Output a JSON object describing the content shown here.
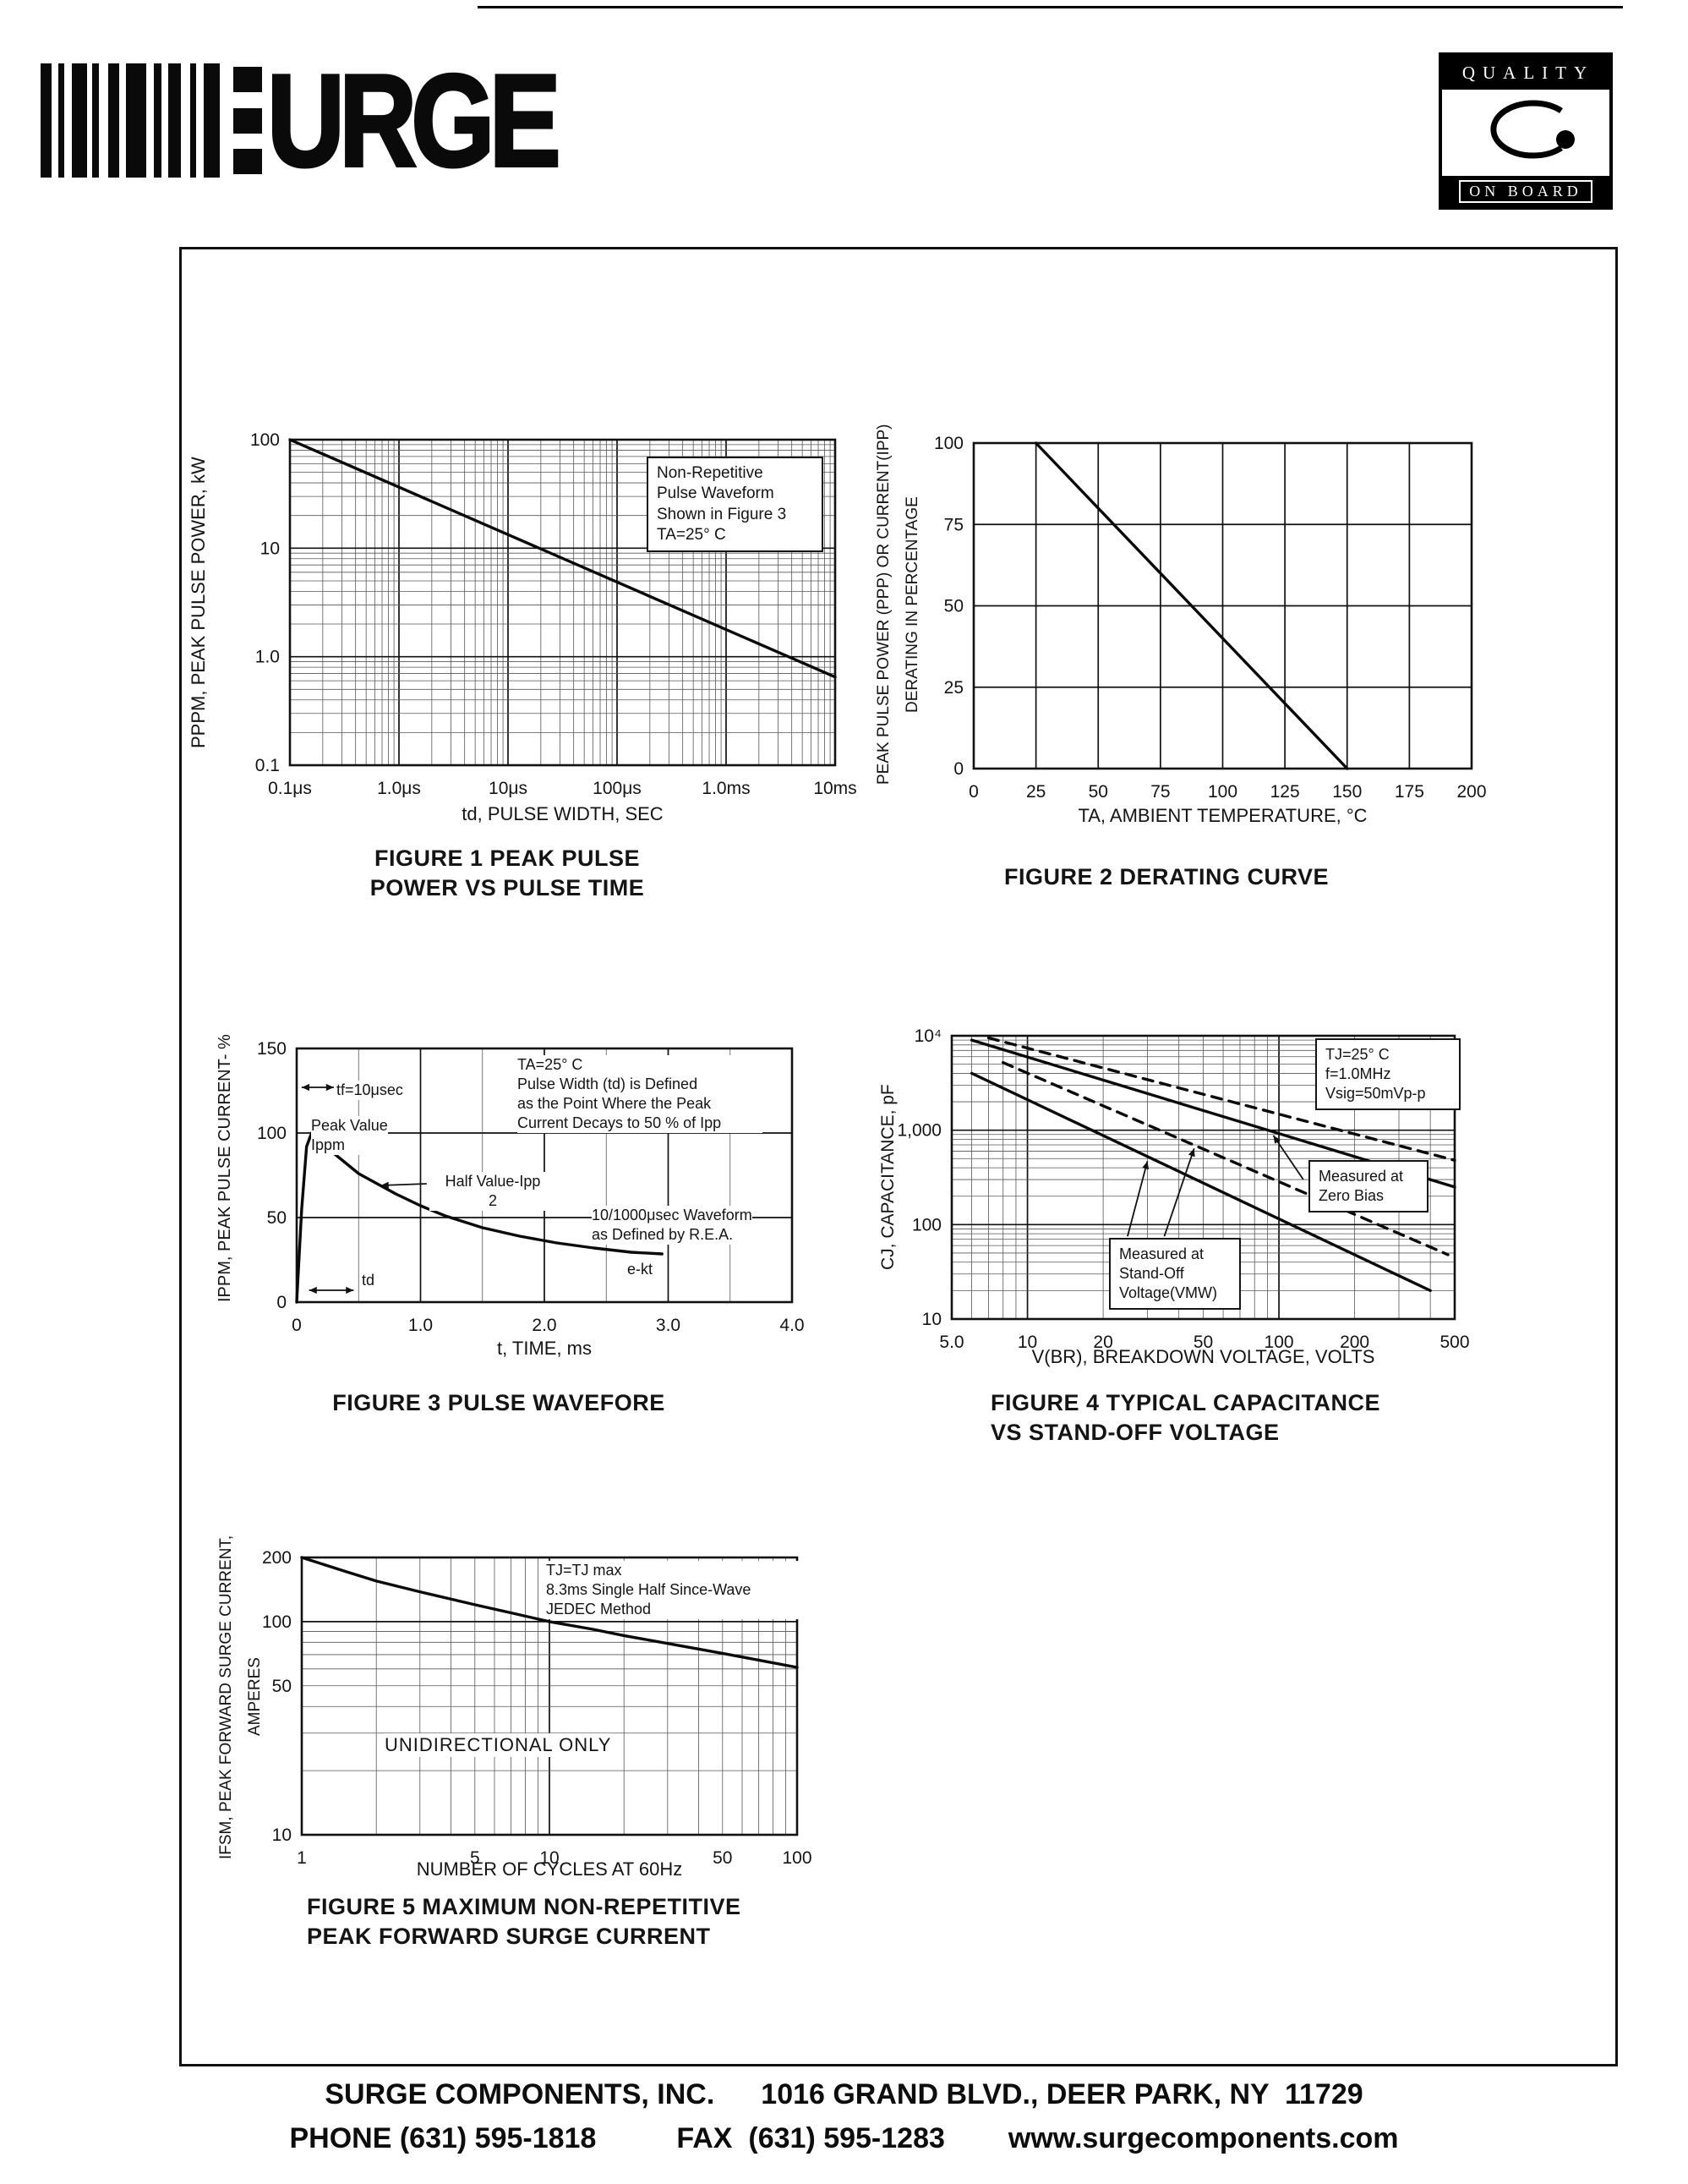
{
  "page": {
    "header": {
      "brand": "URGE",
      "quality_top": "QUALITY",
      "quality_bottom": "ON BOARD"
    },
    "footer": {
      "company": "SURGE COMPONENTS, INC.",
      "address": "1016 GRAND BLVD., DEER PARK, NY  11729",
      "phone_label": "PHONE ",
      "phone": "(631) 595-1818",
      "fax_label": "FAX  ",
      "fax": "(631) 595-1283",
      "website": "www.surgecomponents.com"
    }
  },
  "chart_data": [
    {
      "id": "figure1",
      "type": "line",
      "caption": "FIGURE 1 PEAK PULSE\nPOWER VS PULSE TIME",
      "xlabel": "td, PULSE WIDTH, SEC",
      "ylabel": "PPPM, PEAK PULSE POWER, kW",
      "x": {
        "scale": "log",
        "min": 1e-07,
        "max": 0.01,
        "ticks": [
          {
            "v": 1e-07,
            "label": "0.1μs"
          },
          {
            "v": 1e-06,
            "label": "1.0μs"
          },
          {
            "v": 1e-05,
            "label": "10μs"
          },
          {
            "v": 0.0001,
            "label": "100μs"
          },
          {
            "v": 0.001,
            "label": "1.0ms"
          },
          {
            "v": 0.01,
            "label": "10ms"
          }
        ]
      },
      "y": {
        "scale": "log",
        "min": 0.1,
        "max": 100,
        "ticks": [
          {
            "v": 100,
            "label": "100"
          },
          {
            "v": 10,
            "label": "10"
          },
          {
            "v": 1,
            "label": "1.0"
          },
          {
            "v": 0.1,
            "label": "0.1"
          }
        ]
      },
      "series": [
        {
          "name": "non-repetitive peak pulse power",
          "dash": false,
          "points": [
            [
              1e-07,
              100
            ],
            [
              0.01,
              0.65
            ]
          ]
        }
      ],
      "annotations": {
        "cond": "Non-Repetitive\nPulse Waveform\nShown in Figure 3\nTA=25° C"
      }
    },
    {
      "id": "figure2",
      "type": "line",
      "caption": "FIGURE 2 DERATING CURVE",
      "xlabel": "TA, AMBIENT  TEMPERATURE, °C",
      "ylabel": "PEAK PULSE POWER (PPP) OR CURRENT(IPP)",
      "ylabel2": "DERATING IN PERCENTAGE",
      "x": {
        "scale": "linear",
        "min": 0,
        "max": 200,
        "grid_step": 25,
        "major_step": 25,
        "ticks": [
          {
            "v": 0,
            "label": "0"
          },
          {
            "v": 25,
            "label": "25"
          },
          {
            "v": 50,
            "label": "50"
          },
          {
            "v": 75,
            "label": "75"
          },
          {
            "v": 100,
            "label": "100"
          },
          {
            "v": 125,
            "label": "125"
          },
          {
            "v": 150,
            "label": "150"
          },
          {
            "v": 175,
            "label": "175"
          },
          {
            "v": 200,
            "label": "200"
          }
        ]
      },
      "y": {
        "scale": "linear",
        "min": 0,
        "max": 100,
        "grid_step": 25,
        "major_step": 25,
        "ticks": [
          {
            "v": 100,
            "label": "100"
          },
          {
            "v": 75,
            "label": "75"
          },
          {
            "v": 50,
            "label": "50"
          },
          {
            "v": 25,
            "label": "25"
          },
          {
            "v": 0,
            "label": "0"
          }
        ]
      },
      "series": [
        {
          "name": "derating",
          "dash": false,
          "points": [
            [
              25,
              100
            ],
            [
              150,
              0
            ]
          ]
        }
      ],
      "annotations": {}
    },
    {
      "id": "figure3",
      "type": "line",
      "caption": "FIGURE 3 PULSE WAVEFORE",
      "xlabel": "t, TIME, ms",
      "ylabel": "IPPM, PEAK PULSE CURRENT- %",
      "x": {
        "scale": "linear",
        "min": 0,
        "max": 4,
        "grid_step": 0.5,
        "major_step": 1,
        "ticks": [
          {
            "v": 0,
            "label": "0"
          },
          {
            "v": 1,
            "label": "1.0"
          },
          {
            "v": 2,
            "label": "2.0"
          },
          {
            "v": 3,
            "label": "3.0"
          },
          {
            "v": 4,
            "label": "4.0"
          }
        ]
      },
      "y": {
        "scale": "linear",
        "min": 0,
        "max": 150,
        "grid_step": 50,
        "major_step": 50,
        "ticks": [
          {
            "v": 150,
            "label": "150"
          },
          {
            "v": 100,
            "label": "100"
          },
          {
            "v": 50,
            "label": "50"
          },
          {
            "v": 0,
            "label": "0"
          }
        ]
      },
      "series": [
        {
          "name": "10/1000μsec pulse waveform",
          "dash": false,
          "points": [
            [
              0,
              0
            ],
            [
              0.04,
              55
            ],
            [
              0.08,
              92
            ],
            [
              0.12,
              100
            ],
            [
              0.2,
              95
            ],
            [
              0.3,
              88
            ],
            [
              0.4,
              82
            ],
            [
              0.5,
              76
            ],
            [
              0.65,
              70
            ],
            [
              0.8,
              64
            ],
            [
              1.0,
              57
            ],
            [
              1.2,
              51
            ],
            [
              1.5,
              44
            ],
            [
              1.8,
              39
            ],
            [
              2.1,
              35
            ],
            [
              2.4,
              32
            ],
            [
              2.7,
              29.5
            ],
            [
              2.95,
              28.5
            ]
          ]
        }
      ],
      "leaders": [
        {
          "from": [
            0.04,
            127
          ],
          "to": [
            0.3,
            127
          ],
          "both": true
        },
        {
          "from": [
            0.45,
            95
          ],
          "to": [
            0.17,
            99
          ],
          "both": false
        },
        {
          "from": [
            1.05,
            70
          ],
          "to": [
            0.68,
            69
          ],
          "both": false
        },
        {
          "from": [
            0.1,
            7
          ],
          "to": [
            0.46,
            7
          ],
          "both": true
        }
      ],
      "annotations": {
        "cond": "TA=25° C\nPulse Width (td) is Defined\nas the Point Where the Peak\nCurrent Decays to 50 % of Ipp",
        "tf": "tf=10μsec",
        "peak": "Peak Value\nIppm",
        "half": "Half Value-Ipp\n2",
        "rea": "10/1000μsec Waveform\nas Defined by R.E.A.",
        "ekt": "e-kt",
        "td": "td"
      }
    },
    {
      "id": "figure4",
      "type": "line",
      "caption": "FIGURE 4 TYPICAL CAPACITANCE\nVS STAND-OFF VOLTAGE",
      "xlabel": "V(BR), BREAKDOWN  VOLTAGE, VOLTS",
      "ylabel": "CJ, CAPACITANCE, pF",
      "x": {
        "scale": "log",
        "min": 5,
        "max": 500,
        "ticks": [
          {
            "v": 5,
            "label": "5.0"
          },
          {
            "v": 10,
            "label": "10"
          },
          {
            "v": 20,
            "label": "20"
          },
          {
            "v": 50,
            "label": "50"
          },
          {
            "v": 100,
            "label": "100"
          },
          {
            "v": 200,
            "label": "200"
          },
          {
            "v": 500,
            "label": "500"
          }
        ]
      },
      "y": {
        "scale": "log",
        "min": 10,
        "max": 10000,
        "ticks": [
          {
            "v": 10000,
            "label": "10⁴"
          },
          {
            "v": 1000,
            "label": "1,000"
          },
          {
            "v": 100,
            "label": "100"
          },
          {
            "v": 10,
            "label": "10"
          }
        ]
      },
      "series": [
        {
          "name": "zero bias (solid)",
          "dash": false,
          "points": [
            [
              6,
              9000
            ],
            [
              500,
              250
            ]
          ]
        },
        {
          "name": "zero bias (dashed)",
          "dash": true,
          "points": [
            [
              7,
              9500
            ],
            [
              500,
              480
            ]
          ]
        },
        {
          "name": "stand-off voltage (solid)",
          "dash": false,
          "points": [
            [
              6,
              4000
            ],
            [
              400,
              20
            ]
          ]
        },
        {
          "name": "stand-off voltage (dashed)",
          "dash": true,
          "points": [
            [
              8,
              5200
            ],
            [
              470,
              48
            ]
          ]
        }
      ],
      "leaders": [
        {
          "from": [
            125,
            300
          ],
          "to": [
            95,
            880
          ],
          "both": false
        },
        {
          "from": [
            25,
            75
          ],
          "to": [
            30,
            470
          ],
          "both": false
        },
        {
          "from": [
            35,
            75
          ],
          "to": [
            46,
            640
          ],
          "both": false
        }
      ],
      "annotations": {
        "cond": "TJ=25° C\nf=1.0MHz\nVsig=50mVp-p",
        "zero_bias": "Measured at\nZero Bias",
        "standoff": "Measured at\nStand-Off\nVoltage(VMW)"
      }
    },
    {
      "id": "figure5",
      "type": "line",
      "caption": "FIGURE 5 MAXIMUM NON-REPETITIVE\nPEAK FORWARD SURGE CURRENT",
      "xlabel": "NUMBER  OF  CYCLES  AT  60Hz",
      "ylabel": "IFSM, PEAK FORWARD SURGE CURRENT,",
      "ylabel2": "AMPERES",
      "x": {
        "scale": "log",
        "min": 1,
        "max": 100,
        "ticks": [
          {
            "v": 1,
            "label": "1"
          },
          {
            "v": 5,
            "label": "5"
          },
          {
            "v": 10,
            "label": "10"
          },
          {
            "v": 50,
            "label": "50"
          },
          {
            "v": 100,
            "label": "100"
          }
        ]
      },
      "y": {
        "scale": "log",
        "min": 10,
        "max": 200,
        "ticks": [
          {
            "v": 200,
            "label": "200"
          },
          {
            "v": 100,
            "label": "100"
          },
          {
            "v": 50,
            "label": "50"
          },
          {
            "v": 10,
            "label": "10"
          }
        ]
      },
      "series": [
        {
          "name": "peak forward surge current",
          "dash": false,
          "points": [
            [
              1,
              200
            ],
            [
              1.5,
              172
            ],
            [
              2,
              155
            ],
            [
              3,
              138
            ],
            [
              5,
              120
            ],
            [
              7,
              110
            ],
            [
              10,
              100
            ],
            [
              15,
              92
            ],
            [
              20,
              86
            ],
            [
              30,
              79
            ],
            [
              50,
              71
            ],
            [
              70,
              66
            ],
            [
              100,
              61
            ]
          ]
        }
      ],
      "annotations": {
        "cond": "TJ=TJ max\n8.3ms Single Half Since-Wave\nJEDEC Method",
        "mode": "UNIDIRECTIONAL ONLY"
      }
    }
  ]
}
